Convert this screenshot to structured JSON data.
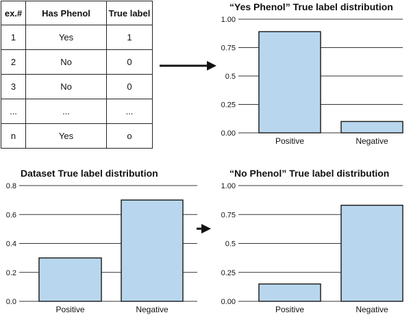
{
  "table": {
    "headers": [
      "ex.#",
      "Has Phenol",
      "True label"
    ],
    "rows": [
      [
        "1",
        "Yes",
        "1"
      ],
      [
        "2",
        "No",
        "0"
      ],
      [
        "3",
        "No",
        "0"
      ],
      [
        "...",
        "...",
        "..."
      ],
      [
        "n",
        "Yes",
        "o"
      ]
    ]
  },
  "colors": {
    "bar_fill": "#b8d7ee",
    "bar_stroke": "#222222",
    "grid": "#333333"
  },
  "chart_data": [
    {
      "id": "yes",
      "type": "bar",
      "title": "“Yes Phenol” True label distribution",
      "categories": [
        "Positive",
        "Negative"
      ],
      "values": [
        0.89,
        0.1
      ],
      "ylim": [
        0,
        1.0
      ],
      "yticks": [
        "0.00",
        "0.25",
        "0.5",
        "0.75",
        "1.00"
      ],
      "ytick_values": [
        0,
        0.25,
        0.5,
        0.75,
        1.0
      ],
      "grid": true
    },
    {
      "id": "dataset",
      "type": "bar",
      "title": "Dataset True label distribution",
      "categories": [
        "Positive",
        "Negative"
      ],
      "values": [
        0.3,
        0.7
      ],
      "ylim": [
        0,
        0.8
      ],
      "yticks": [
        "0.0",
        "0.2",
        "0.4",
        "0.6",
        "0.8"
      ],
      "ytick_values": [
        0,
        0.2,
        0.4,
        0.6,
        0.8
      ],
      "grid": true
    },
    {
      "id": "no",
      "type": "bar",
      "title": "“No Phenol” True label distribution",
      "categories": [
        "Positive",
        "Negative"
      ],
      "values": [
        0.15,
        0.83
      ],
      "ylim": [
        0,
        1.0
      ],
      "yticks": [
        "0.00",
        "0.25",
        "0.5",
        "0.75",
        "1.00"
      ],
      "ytick_values": [
        0,
        0.25,
        0.5,
        0.75,
        1.0
      ],
      "grid": true
    }
  ]
}
